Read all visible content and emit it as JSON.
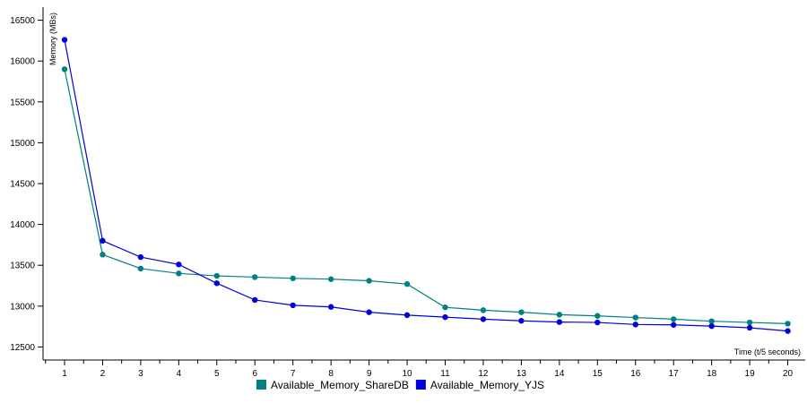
{
  "chart_data": {
    "type": "line",
    "title": "",
    "xlabel": "Time (t/5 seconds)",
    "ylabel": "Memory (MBs)",
    "categories": [
      "1",
      "2",
      "3",
      "4",
      "5",
      "6",
      "7",
      "8",
      "9",
      "10",
      "11",
      "12",
      "13",
      "14",
      "15",
      "16",
      "17",
      "18",
      "19",
      "20"
    ],
    "yticks": [
      12500,
      13000,
      13500,
      14000,
      14500,
      15000,
      15500,
      16000,
      16500
    ],
    "ylim": [
      12340,
      16660
    ],
    "grid": false,
    "legend_position": "bottom-center",
    "series": [
      {
        "name": "Available_Memory_ShareDB",
        "color": "#008080",
        "values": [
          15900,
          13630,
          13460,
          13400,
          13370,
          13355,
          13340,
          13330,
          13310,
          13270,
          12985,
          12950,
          12925,
          12895,
          12880,
          12860,
          12840,
          12815,
          12800,
          12785
        ]
      },
      {
        "name": "Available_Memory_YJS",
        "color": "#0000dd",
        "values": [
          16260,
          13800,
          13600,
          13510,
          13280,
          13075,
          13010,
          12990,
          12925,
          12890,
          12865,
          12840,
          12820,
          12805,
          12800,
          12775,
          12770,
          12755,
          12735,
          12695
        ]
      }
    ]
  }
}
